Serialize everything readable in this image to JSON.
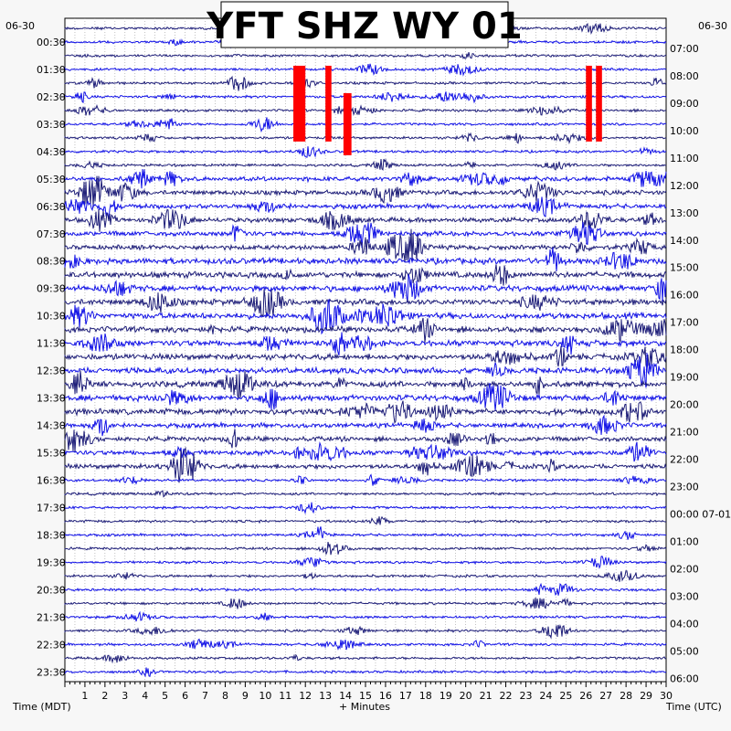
{
  "chart_data": {
    "type": "line",
    "title": "YFT SHZ WY 01",
    "left_date": "06-30",
    "right_date": "06-30",
    "left_axis_label": "Time (MDT)",
    "right_axis_label": "Time (UTC)",
    "x_axis_label": "+ Minutes",
    "x_ticks": [
      "1",
      "2",
      "3",
      "4",
      "5",
      "6",
      "7",
      "8",
      "9",
      "10",
      "11",
      "12",
      "13",
      "14",
      "15",
      "16",
      "17",
      "18",
      "19",
      "20",
      "21",
      "22",
      "23",
      "24",
      "25",
      "26",
      "27",
      "28",
      "29",
      "30"
    ],
    "xlim": [
      0,
      30
    ],
    "left_time_labels": [
      "00:30",
      "01:30",
      "02:30",
      "03:30",
      "04:30",
      "05:30",
      "06:30",
      "07:30",
      "08:30",
      "09:30",
      "10:30",
      "11:30",
      "12:30",
      "13:30",
      "14:30",
      "15:30",
      "16:30",
      "17:30",
      "18:30",
      "19:30",
      "20:30",
      "21:30",
      "22:30",
      "23:30"
    ],
    "right_time_labels": [
      "07:00",
      "08:00",
      "09:00",
      "10:00",
      "11:00",
      "12:00",
      "13:00",
      "14:00",
      "15:00",
      "16:00",
      "17:00",
      "18:00",
      "19:00",
      "20:00",
      "21:00",
      "22:00",
      "23:00",
      "00:00 07-01",
      "01:00",
      "02:00",
      "03:00",
      "04:00",
      "05:00",
      "06:00"
    ],
    "trace_count": 48,
    "trace_minutes": 30,
    "grid": true,
    "colors": {
      "trace_a": "#1d1d78",
      "trace_b": "#1111e6",
      "clipped": "#ff0000",
      "background": "#ffffff",
      "grid": "#9a9a9a"
    },
    "clipped_events": [
      {
        "minute_start": 11.4,
        "minute_end": 12.0,
        "from_trace": 3,
        "to_trace": 8
      },
      {
        "minute_start": 13.0,
        "minute_end": 13.3,
        "from_trace": 3,
        "to_trace": 8
      },
      {
        "minute_start": 13.9,
        "minute_end": 14.3,
        "from_trace": 5,
        "to_trace": 9
      },
      {
        "minute_start": 26.0,
        "minute_end": 26.3,
        "from_trace": 3,
        "to_trace": 8
      },
      {
        "minute_start": 26.5,
        "minute_end": 26.8,
        "from_trace": 3,
        "to_trace": 8
      }
    ]
  }
}
